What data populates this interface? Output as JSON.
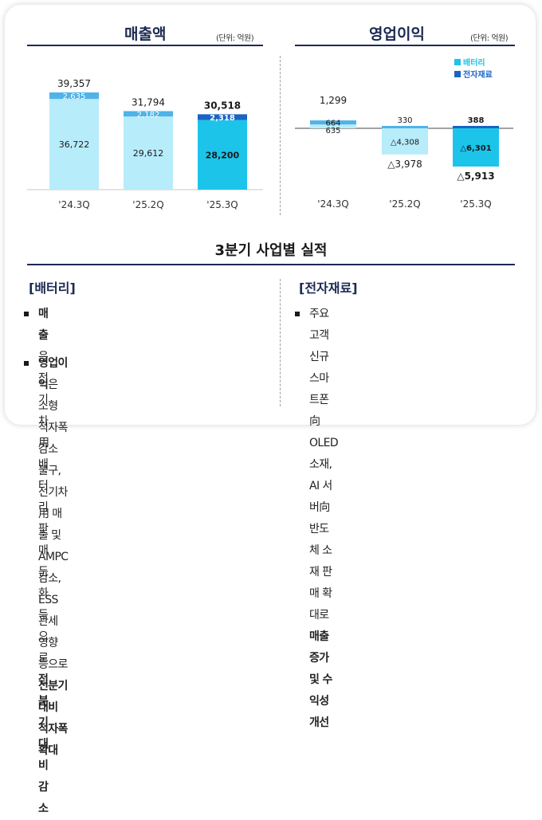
{
  "left_header": {
    "title": "매출액",
    "unit": "(단위: 억원)"
  },
  "right_header": {
    "title": "영업이익",
    "unit": "(단위: 억원)"
  },
  "section_title": "3분기 사업별 실적",
  "colors": {
    "navy": "#1b2a52",
    "light": "#b7ecfb",
    "mid": "#4fb3e8",
    "cyan": "#1cc4ea",
    "dark": "#1b63c4"
  },
  "chart_data": [
    {
      "type": "bar",
      "title": "매출액",
      "unit": "(단위: 억원)",
      "categories": [
        "'24.3Q",
        "'25.2Q",
        "'25.3Q"
      ],
      "series": [
        {
          "name": "배터리",
          "values": [
            36722,
            29612,
            28200
          ]
        },
        {
          "name": "전자재료",
          "values": [
            2635,
            2182,
            2318
          ]
        }
      ],
      "totals": [
        39357,
        31794,
        30518
      ],
      "labels": {
        "battery": [
          "36,722",
          "29,612",
          "28,200"
        ],
        "materials": [
          "2,635",
          "2,182",
          "2,318"
        ],
        "totals": [
          "39,357",
          "31,794",
          "30,518"
        ]
      }
    },
    {
      "type": "bar",
      "title": "영업이익",
      "unit": "(단위: 억원)",
      "categories": [
        "'24.3Q",
        "'25.2Q",
        "'25.3Q"
      ],
      "legend": [
        "배터리",
        "전자재료"
      ],
      "series": [
        {
          "name": "배터리",
          "values": [
            635,
            -4308,
            -6301
          ]
        },
        {
          "name": "전자재료",
          "values": [
            664,
            330,
            388
          ]
        }
      ],
      "totals": [
        1299,
        -3978,
        -5913
      ],
      "labels": {
        "battery": [
          "635",
          "△4,308",
          "△6,301"
        ],
        "materials": [
          "664",
          "330",
          "388"
        ],
        "totals": [
          "1,299",
          "△3,978",
          "△5,913"
        ]
      }
    }
  ],
  "battery_section": {
    "title": "[배터리]",
    "bullets": [
      {
        "lines": [
          [
            {
              "t": "매출",
              "b": true
            },
            {
              "t": "은 전기차用 배터리 판매 둔화 등으로",
              "b": false
            }
          ],
          [
            {
              "t": "전분기 대비 감소",
              "b": true
            }
          ]
        ]
      },
      {
        "lines": [
          [
            {
              "t": "영업이익",
              "b": true
            },
            {
              "t": "은 소형 적자폭 감소 불구,",
              "b": false
            }
          ],
          [
            {
              "t": "전기차用 매출 및 AMPC 감소, ESS 관세 영향",
              "b": false
            }
          ],
          [
            {
              "t": "등으로 ",
              "b": false
            },
            {
              "t": "전분기 대비 적자폭 확대",
              "b": true
            }
          ]
        ]
      }
    ]
  },
  "materials_section": {
    "title": "[전자재료]",
    "bullets": [
      {
        "lines": [
          [
            {
              "t": "주요 고객 신규 스마트폰向 OLED 소재,",
              "b": false
            }
          ],
          [
            {
              "t": "AI 서버向 반도체 소재 판매 확대로",
              "b": false
            }
          ],
          [
            {
              "t": "매출 증가 및 수익성 개선",
              "b": true
            }
          ]
        ]
      }
    ]
  }
}
